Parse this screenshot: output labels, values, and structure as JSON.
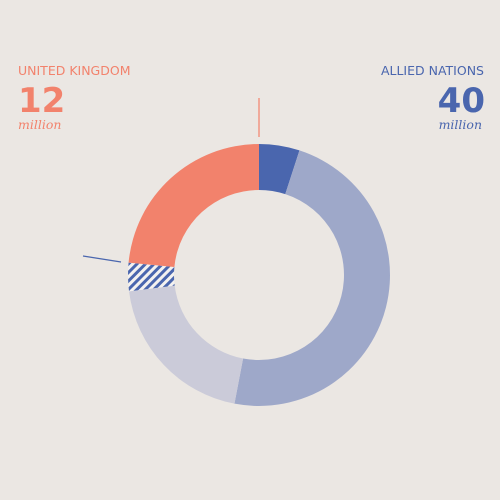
{
  "chart_data": {
    "type": "donut",
    "values": [
      5,
      48,
      20,
      3.5,
      23.5
    ],
    "colors": [
      "#4a66ae",
      "#9ea8c9",
      "#cbcbd9",
      "#4a66ae",
      "#f2826c"
    ],
    "hatched": [
      false,
      false,
      false,
      true,
      false
    ],
    "annotations": [
      {
        "label": "UNITED KINGDOM",
        "value": 12,
        "unit": "million",
        "color": "#f2826c",
        "side": "left"
      },
      {
        "label": "ALLIED NATIONS",
        "value": 40,
        "unit": "million",
        "color": "#4a66ae",
        "side": "right"
      }
    ]
  }
}
